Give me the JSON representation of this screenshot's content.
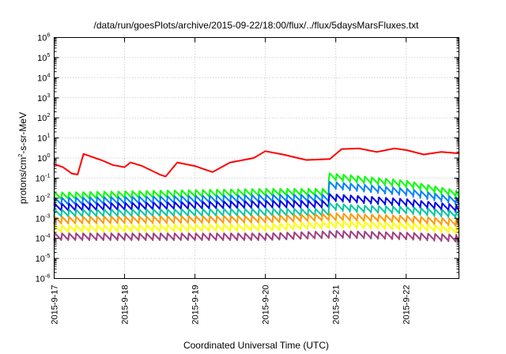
{
  "chart_data": {
    "type": "line",
    "title": "/data/run/goesPlots/archive/2015-09-22/18:00/flux/../flux/5daysMarsFluxes.txt",
    "xlabel": "Coordinated Universal Time (UTC)",
    "ylabel": {
      "prefix": "protons/cm",
      "sup": "2",
      "suffix": "-s-sr-MeV"
    },
    "yscale": "log",
    "ylim_exp": [
      -6,
      6
    ],
    "y_tick_base": "10",
    "y_tick_exponents": [
      "-6",
      "-5",
      "-4",
      "-3",
      "-2",
      "-1",
      "0",
      "1",
      "2",
      "3",
      "4",
      "5",
      "6"
    ],
    "xlim": [
      "2015-09-17 00:00",
      "2015-09-22 18:00"
    ],
    "x_tick_labels": [
      "2015-9-17",
      "2015-9-18",
      "2015-9-19",
      "2015-9-20",
      "2015-9-21",
      "2015-9-22"
    ],
    "grid": true,
    "sawtooth_period_hours": 2.4,
    "series": [
      {
        "color": "#ff0000",
        "kind": "ramp",
        "points": [
          [
            "2015-09-17 00:00",
            0.5
          ],
          [
            "2015-09-17 03:00",
            0.35
          ],
          [
            "2015-09-17 06:00",
            0.17
          ],
          [
            "2015-09-17 08:00",
            0.15
          ],
          [
            "2015-09-17 10:00",
            1.6
          ],
          [
            "2015-09-17 16:00",
            0.8
          ],
          [
            "2015-09-17 20:00",
            0.45
          ],
          [
            "2015-09-18 00:00",
            0.35
          ],
          [
            "2015-09-18 02:00",
            0.6
          ],
          [
            "2015-09-18 06:00",
            0.4
          ],
          [
            "2015-09-18 12:00",
            0.15
          ],
          [
            "2015-09-18 14:00",
            0.12
          ],
          [
            "2015-09-18 18:00",
            0.6
          ],
          [
            "2015-09-19 00:00",
            0.4
          ],
          [
            "2015-09-19 06:00",
            0.2
          ],
          [
            "2015-09-19 12:00",
            0.6
          ],
          [
            "2015-09-19 20:00",
            1.0
          ],
          [
            "2015-09-20 00:00",
            2.2
          ],
          [
            "2015-09-20 06:00",
            1.5
          ],
          [
            "2015-09-20 14:00",
            0.8
          ],
          [
            "2015-09-20 22:00",
            0.9
          ],
          [
            "2015-09-21 02:00",
            2.8
          ],
          [
            "2015-09-21 08:00",
            3.0
          ],
          [
            "2015-09-21 14:00",
            2.0
          ],
          [
            "2015-09-21 20:00",
            3.0
          ],
          [
            "2015-09-22 00:00",
            2.5
          ],
          [
            "2015-09-22 06:00",
            1.5
          ],
          [
            "2015-09-22 12:00",
            2.0
          ],
          [
            "2015-09-22 18:00",
            1.7
          ]
        ]
      },
      {
        "color": "#00ff00",
        "kind": "sawtooth",
        "points": [
          [
            "2015-09-17 00:00",
            0.013
          ],
          [
            "2015-09-20 00:00",
            0.02
          ],
          [
            "2015-09-20 21:00",
            0.02
          ],
          [
            "2015-09-20 21:10",
            0.12
          ],
          [
            "2015-09-21 06:00",
            0.09
          ],
          [
            "2015-09-22 00:00",
            0.05
          ],
          [
            "2015-09-22 18:00",
            0.015
          ]
        ]
      },
      {
        "color": "#0080ff",
        "kind": "sawtooth",
        "points": [
          [
            "2015-09-17 00:00",
            0.007
          ],
          [
            "2015-09-20 00:00",
            0.01
          ],
          [
            "2015-09-20 21:00",
            0.01
          ],
          [
            "2015-09-20 21:10",
            0.045
          ],
          [
            "2015-09-21 06:00",
            0.035
          ],
          [
            "2015-09-22 00:00",
            0.02
          ],
          [
            "2015-09-22 18:00",
            0.007
          ]
        ]
      },
      {
        "color": "#0000ee",
        "kind": "sawtooth",
        "points": [
          [
            "2015-09-17 00:00",
            0.0035
          ],
          [
            "2015-09-20 00:00",
            0.005
          ],
          [
            "2015-09-20 21:00",
            0.005
          ],
          [
            "2015-09-20 21:10",
            0.011
          ],
          [
            "2015-09-21 06:00",
            0.009
          ],
          [
            "2015-09-22 00:00",
            0.006
          ],
          [
            "2015-09-22 18:00",
            0.003
          ]
        ]
      },
      {
        "color": "#00c8a0",
        "kind": "sawtooth",
        "points": [
          [
            "2015-09-17 00:00",
            0.0018
          ],
          [
            "2015-09-20 00:00",
            0.002
          ],
          [
            "2015-09-20 21:00",
            0.002
          ],
          [
            "2015-09-20 21:10",
            0.004
          ],
          [
            "2015-09-21 06:00",
            0.003
          ],
          [
            "2015-09-22 00:00",
            0.0025
          ],
          [
            "2015-09-22 18:00",
            0.0015
          ]
        ]
      },
      {
        "color": "#ff9900",
        "kind": "sawtooth",
        "points": [
          [
            "2015-09-17 00:00",
            0.0008
          ],
          [
            "2015-09-20 00:00",
            0.0009
          ],
          [
            "2015-09-21 00:00",
            0.0012
          ],
          [
            "2015-09-22 00:00",
            0.0009
          ],
          [
            "2015-09-22 18:00",
            0.0006
          ]
        ]
      },
      {
        "color": "#ffff00",
        "kind": "sawtooth",
        "points": [
          [
            "2015-09-17 00:00",
            0.0003
          ],
          [
            "2015-09-20 00:00",
            0.00035
          ],
          [
            "2015-09-21 00:00",
            0.0005
          ],
          [
            "2015-09-22 00:00",
            0.0004
          ],
          [
            "2015-09-22 18:00",
            0.00025
          ]
        ]
      },
      {
        "color": "#a04080",
        "kind": "sawtooth",
        "points": [
          [
            "2015-09-17 00:00",
            0.00012
          ],
          [
            "2015-09-20 00:00",
            0.00012
          ],
          [
            "2015-09-21 00:00",
            0.00016
          ],
          [
            "2015-09-22 00:00",
            0.00013
          ],
          [
            "2015-09-22 18:00",
            0.0001
          ]
        ]
      }
    ]
  }
}
